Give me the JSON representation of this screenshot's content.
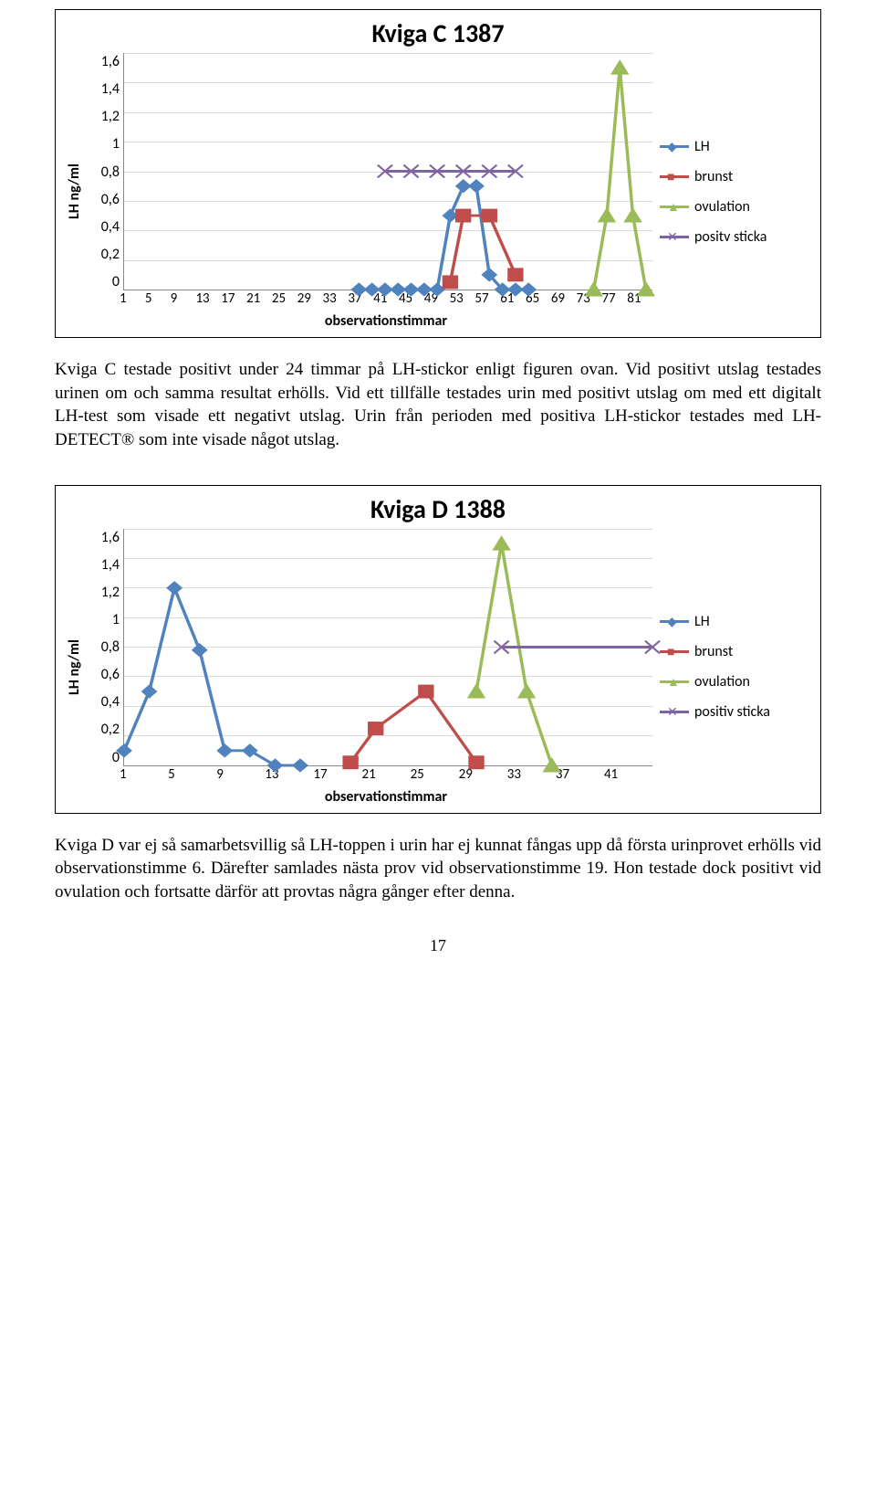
{
  "chart1": {
    "title": "Kviga C 1387",
    "ylabel": "LH ng/ml",
    "xlabel": "observationstimmar",
    "ymin": 0,
    "ymax": 1.6,
    "yticks": [
      "1,6",
      "1,4",
      "1,2",
      "1",
      "0,8",
      "0,6",
      "0,4",
      "0,2",
      "0"
    ],
    "xticks": [
      "1",
      "5",
      "9",
      "13",
      "17",
      "21",
      "25",
      "29",
      "33",
      "37",
      "41",
      "45",
      "49",
      "53",
      "57",
      "61",
      "65",
      "69",
      "73",
      "77",
      "81"
    ],
    "xmin": 1,
    "xmax": 82,
    "colors": {
      "lh": "#5082be",
      "brunst": "#bf4d4b",
      "ovul": "#9bbb59",
      "sticka": "#8064a2",
      "grid": "#d9d9d9"
    },
    "series": {
      "lh": [
        [
          37,
          0
        ],
        [
          39,
          0
        ],
        [
          41,
          0
        ],
        [
          43,
          0
        ],
        [
          45,
          0
        ],
        [
          47,
          0
        ],
        [
          49,
          0
        ],
        [
          51,
          0.5
        ],
        [
          53,
          0.7
        ],
        [
          55,
          0.7
        ],
        [
          57,
          0.1
        ],
        [
          59,
          0
        ],
        [
          61,
          0
        ],
        [
          63,
          0
        ]
      ],
      "brunst": [
        [
          51,
          0.05
        ],
        [
          53,
          0.5
        ],
        [
          57,
          0.5
        ],
        [
          61,
          0.1
        ]
      ],
      "ovul": [
        [
          73,
          0
        ],
        [
          75,
          0.5
        ],
        [
          77,
          1.5
        ],
        [
          79,
          0.5
        ],
        [
          81,
          0
        ]
      ],
      "sticka": [
        [
          41,
          0.8
        ],
        [
          45,
          0.8
        ],
        [
          49,
          0.8
        ],
        [
          53,
          0.8
        ],
        [
          57,
          0.8
        ],
        [
          61,
          0.8
        ]
      ]
    },
    "legend": [
      {
        "key": "lh",
        "label": "LH",
        "marker": "diamond"
      },
      {
        "key": "brunst",
        "label": "brunst",
        "marker": "square"
      },
      {
        "key": "ovul",
        "label": "ovulation",
        "marker": "triangle"
      },
      {
        "key": "sticka",
        "label": "positv sticka",
        "marker": "x"
      }
    ]
  },
  "para1": "Kviga C testade positivt under 24 timmar på LH-stickor enligt figuren ovan. Vid positivt utslag testades urinen om och samma resultat erhölls. Vid ett tillfälle testades urin med positivt utslag om med ett digitalt LH-test som visade ett negativt utslag. Urin från perioden med positiva LH-stickor testades med LH-DETECT® som inte visade något utslag.",
  "chart2": {
    "title": "Kviga D 1388",
    "ylabel": "LH ng/ml",
    "xlabel": "observationstimmar",
    "ymin": 0,
    "ymax": 1.6,
    "yticks": [
      "1,6",
      "1,4",
      "1,2",
      "1",
      "0,8",
      "0,6",
      "0,4",
      "0,2",
      "0"
    ],
    "xticks": [
      "1",
      "5",
      "9",
      "13",
      "17",
      "21",
      "25",
      "29",
      "33",
      "37",
      "41"
    ],
    "xmin": 1,
    "xmax": 43,
    "colors": {
      "lh": "#5082be",
      "brunst": "#bf4d4b",
      "ovul": "#9bbb59",
      "sticka": "#8064a2",
      "grid": "#d9d9d9"
    },
    "series": {
      "lh": [
        [
          1,
          0.1
        ],
        [
          3,
          0.5
        ],
        [
          5,
          1.2
        ],
        [
          7,
          0.78
        ],
        [
          9,
          0.1
        ],
        [
          11,
          0.1
        ],
        [
          13,
          0
        ],
        [
          15,
          0
        ]
      ],
      "brunst": [
        [
          19,
          0.02
        ],
        [
          21,
          0.25
        ],
        [
          25,
          0.5
        ],
        [
          29,
          0.02
        ]
      ],
      "ovul": [
        [
          29,
          0.5
        ],
        [
          31,
          1.5
        ],
        [
          33,
          0.5
        ],
        [
          35,
          0
        ]
      ],
      "sticka": [
        [
          31,
          0.8
        ],
        [
          43,
          0.8
        ]
      ]
    },
    "legend": [
      {
        "key": "lh",
        "label": "LH",
        "marker": "diamond"
      },
      {
        "key": "brunst",
        "label": "brunst",
        "marker": "square"
      },
      {
        "key": "ovul",
        "label": "ovulation",
        "marker": "triangle"
      },
      {
        "key": "sticka",
        "label": "positiv sticka",
        "marker": "x"
      }
    ]
  },
  "para2": "Kviga D var ej så samarbetsvillig så LH-toppen i urin har ej kunnat fångas upp då första urinprovet erhölls vid observationstimme 6. Därefter samlades nästa prov vid observationstimme 19. Hon testade dock positivt vid ovulation och fortsatte därför att provtas några gånger efter denna.",
  "pagenum": "17"
}
